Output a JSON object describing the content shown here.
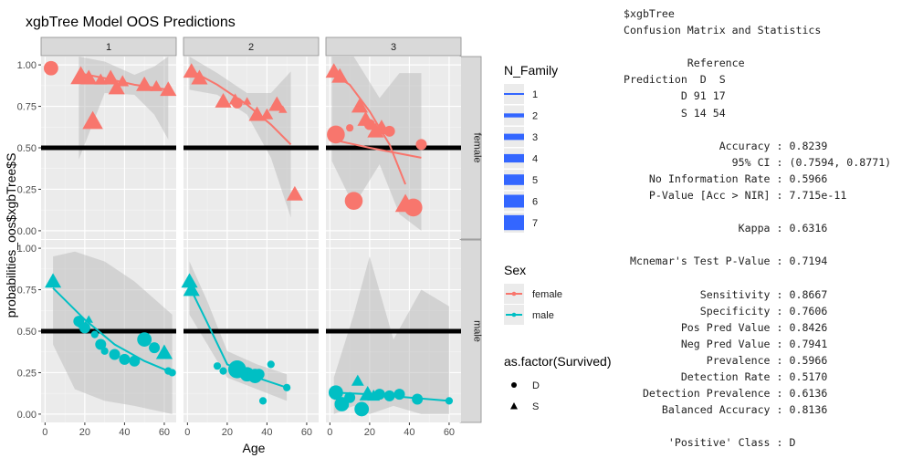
{
  "chart_data": {
    "type": "scatter",
    "title": "xgbTree Model OOS Predictions",
    "xlabel": "Age",
    "ylabel": "probabilities_oos$xgbTree$S",
    "facet_cols": [
      "1",
      "2",
      "3"
    ],
    "facet_rows": [
      "female",
      "male"
    ],
    "x_ticks": [
      "0",
      "20",
      "40",
      "60"
    ],
    "y_ticks": [
      "0.00",
      "0.25",
      "0.50",
      "0.75",
      "1.00"
    ],
    "xlim": [
      -2,
      66
    ],
    "ylim": [
      -0.05,
      1.05
    ],
    "hline": 0.5,
    "grid": true,
    "legend_position": "right",
    "colors": {
      "female": "#F8766D",
      "male": "#00BFC4",
      "panel_bg": "#EBEBEB",
      "strip_bg": "#D9D9D9",
      "band": "#CCCCCC",
      "size_key": "#3366FF"
    },
    "legends": {
      "size": {
        "title": "N_Family",
        "labels": [
          "1",
          "2",
          "3",
          "4",
          "5",
          "6",
          "7"
        ]
      },
      "color": {
        "title": "Sex",
        "labels": [
          "female",
          "male"
        ]
      },
      "shape": {
        "title": "as.factor(Survived)",
        "labels": [
          "D",
          "S"
        ]
      }
    },
    "panels": [
      {
        "col": "1",
        "row": "female",
        "sex": "female",
        "points": [
          {
            "x": 3,
            "y": 0.98,
            "s": "D",
            "n": 3
          },
          {
            "x": 18,
            "y": 0.93,
            "s": "S",
            "n": 4
          },
          {
            "x": 22,
            "y": 0.92,
            "s": "S",
            "n": 3
          },
          {
            "x": 24,
            "y": 0.66,
            "s": "S",
            "n": 4
          },
          {
            "x": 28,
            "y": 0.91,
            "s": "S",
            "n": 2
          },
          {
            "x": 33,
            "y": 0.92,
            "s": "S",
            "n": 3
          },
          {
            "x": 36,
            "y": 0.86,
            "s": "S",
            "n": 3
          },
          {
            "x": 39,
            "y": 0.9,
            "s": "S",
            "n": 2
          },
          {
            "x": 50,
            "y": 0.88,
            "s": "S",
            "n": 3
          },
          {
            "x": 56,
            "y": 0.87,
            "s": "S",
            "n": 2
          },
          {
            "x": 62,
            "y": 0.85,
            "s": "S",
            "n": 3
          }
        ],
        "fit": [
          {
            "x": 17,
            "y": 0.95
          },
          {
            "x": 30,
            "y": 0.92
          },
          {
            "x": 45,
            "y": 0.88
          },
          {
            "x": 62,
            "y": 0.85
          }
        ],
        "band": [
          {
            "x": 17,
            "lo": 0.43,
            "hi": 1.05
          },
          {
            "x": 30,
            "lo": 0.83,
            "hi": 1.02
          },
          {
            "x": 45,
            "lo": 0.82,
            "hi": 0.94
          },
          {
            "x": 55,
            "lo": 0.7,
            "hi": 0.99
          },
          {
            "x": 62,
            "lo": 0.55,
            "hi": 1.05
          }
        ]
      },
      {
        "col": "2",
        "row": "female",
        "sex": "female",
        "points": [
          {
            "x": 2,
            "y": 0.96,
            "s": "S",
            "n": 3
          },
          {
            "x": 6,
            "y": 0.92,
            "s": "S",
            "n": 3
          },
          {
            "x": 18,
            "y": 0.78,
            "s": "S",
            "n": 3
          },
          {
            "x": 24,
            "y": 0.79,
            "s": "S",
            "n": 2
          },
          {
            "x": 25,
            "y": 0.77,
            "s": "D",
            "n": 2
          },
          {
            "x": 30,
            "y": 0.78,
            "s": "S",
            "n": 1
          },
          {
            "x": 35,
            "y": 0.7,
            "s": "S",
            "n": 3
          },
          {
            "x": 40,
            "y": 0.7,
            "s": "S",
            "n": 2
          },
          {
            "x": 45,
            "y": 0.76,
            "s": "S",
            "n": 3
          },
          {
            "x": 48,
            "y": 0.73,
            "s": "S",
            "n": 1
          },
          {
            "x": 54,
            "y": 0.22,
            "s": "S",
            "n": 3
          }
        ],
        "fit": [
          {
            "x": 1,
            "y": 0.97
          },
          {
            "x": 15,
            "y": 0.88
          },
          {
            "x": 30,
            "y": 0.76
          },
          {
            "x": 42,
            "y": 0.64
          },
          {
            "x": 52,
            "y": 0.52
          }
        ],
        "band": [
          {
            "x": 1,
            "lo": 0.85,
            "hi": 1.05
          },
          {
            "x": 15,
            "lo": 0.82,
            "hi": 0.95
          },
          {
            "x": 30,
            "lo": 0.7,
            "hi": 0.83
          },
          {
            "x": 42,
            "lo": 0.44,
            "hi": 0.83
          },
          {
            "x": 52,
            "lo": 0.08,
            "hi": 0.96
          }
        ]
      },
      {
        "col": "3",
        "row": "female",
        "sex": "female",
        "points": [
          {
            "x": 2,
            "y": 0.96,
            "s": "S",
            "n": 3
          },
          {
            "x": 5,
            "y": 0.93,
            "s": "S",
            "n": 3
          },
          {
            "x": 3,
            "y": 0.58,
            "s": "D",
            "n": 4
          },
          {
            "x": 10,
            "y": 0.62,
            "s": "D",
            "n": 1
          },
          {
            "x": 12,
            "y": 0.18,
            "s": "D",
            "n": 4
          },
          {
            "x": 15,
            "y": 0.75,
            "s": "S",
            "n": 3
          },
          {
            "x": 18,
            "y": 0.67,
            "s": "S",
            "n": 3
          },
          {
            "x": 20,
            "y": 0.64,
            "s": "D",
            "n": 2
          },
          {
            "x": 23,
            "y": 0.6,
            "s": "S",
            "n": 3
          },
          {
            "x": 26,
            "y": 0.62,
            "s": "S",
            "n": 3
          },
          {
            "x": 30,
            "y": 0.6,
            "s": "D",
            "n": 2
          },
          {
            "x": 38,
            "y": 0.16,
            "s": "S",
            "n": 4
          },
          {
            "x": 42,
            "y": 0.14,
            "s": "D",
            "n": 4
          },
          {
            "x": 46,
            "y": 0.52,
            "s": "D",
            "n": 2
          }
        ],
        "fit": [
          {
            "x": 1,
            "y": 0.95
          },
          {
            "x": 10,
            "y": 0.88
          },
          {
            "x": 20,
            "y": 0.72
          },
          {
            "x": 30,
            "y": 0.52
          },
          {
            "x": 38,
            "y": 0.28
          }
        ],
        "fit2": [
          {
            "x": 1,
            "y": 0.55
          },
          {
            "x": 20,
            "y": 0.5
          },
          {
            "x": 46,
            "y": 0.44
          }
        ],
        "band": [
          {
            "x": 1,
            "lo": 0.42,
            "hi": 1.05
          },
          {
            "x": 12,
            "lo": 0.15,
            "hi": 1.05
          },
          {
            "x": 25,
            "lo": 0.4,
            "hi": 0.8
          },
          {
            "x": 35,
            "lo": 0.1,
            "hi": 0.95
          },
          {
            "x": 46,
            "lo": 0.0,
            "hi": 0.95
          }
        ]
      },
      {
        "col": "1",
        "row": "male",
        "sex": "male",
        "points": [
          {
            "x": 4,
            "y": 0.8,
            "s": "S",
            "n": 3
          },
          {
            "x": 17,
            "y": 0.56,
            "s": "D",
            "n": 2
          },
          {
            "x": 18,
            "y": 0.54,
            "s": "D",
            "n": 1
          },
          {
            "x": 20,
            "y": 0.52,
            "s": "D",
            "n": 2
          },
          {
            "x": 22,
            "y": 0.57,
            "s": "S",
            "n": 1
          },
          {
            "x": 25,
            "y": 0.48,
            "s": "D",
            "n": 1
          },
          {
            "x": 28,
            "y": 0.42,
            "s": "D",
            "n": 2
          },
          {
            "x": 30,
            "y": 0.38,
            "s": "D",
            "n": 1
          },
          {
            "x": 35,
            "y": 0.36,
            "s": "D",
            "n": 2
          },
          {
            "x": 40,
            "y": 0.33,
            "s": "D",
            "n": 2
          },
          {
            "x": 45,
            "y": 0.32,
            "s": "D",
            "n": 2
          },
          {
            "x": 50,
            "y": 0.45,
            "s": "D",
            "n": 3
          },
          {
            "x": 55,
            "y": 0.4,
            "s": "D",
            "n": 2
          },
          {
            "x": 60,
            "y": 0.37,
            "s": "S",
            "n": 3
          },
          {
            "x": 62,
            "y": 0.26,
            "s": "D",
            "n": 1
          },
          {
            "x": 64,
            "y": 0.25,
            "s": "D",
            "n": 1
          }
        ],
        "fit": [
          {
            "x": 4,
            "y": 0.76
          },
          {
            "x": 20,
            "y": 0.57
          },
          {
            "x": 35,
            "y": 0.42
          },
          {
            "x": 50,
            "y": 0.32
          },
          {
            "x": 64,
            "y": 0.25
          }
        ],
        "band": [
          {
            "x": 4,
            "lo": 0.42,
            "hi": 0.95
          },
          {
            "x": 15,
            "lo": 0.15,
            "hi": 0.98
          },
          {
            "x": 30,
            "lo": 0.08,
            "hi": 0.92
          },
          {
            "x": 45,
            "lo": 0.05,
            "hi": 0.8
          },
          {
            "x": 64,
            "lo": 0.0,
            "hi": 0.6
          }
        ]
      },
      {
        "col": "2",
        "row": "male",
        "sex": "male",
        "points": [
          {
            "x": 1,
            "y": 0.8,
            "s": "S",
            "n": 3
          },
          {
            "x": 2,
            "y": 0.75,
            "s": "S",
            "n": 3
          },
          {
            "x": 15,
            "y": 0.29,
            "s": "D",
            "n": 1
          },
          {
            "x": 18,
            "y": 0.26,
            "s": "D",
            "n": 1
          },
          {
            "x": 25,
            "y": 0.27,
            "s": "D",
            "n": 4
          },
          {
            "x": 28,
            "y": 0.25,
            "s": "D",
            "n": 2
          },
          {
            "x": 30,
            "y": 0.24,
            "s": "D",
            "n": 3
          },
          {
            "x": 34,
            "y": 0.23,
            "s": "D",
            "n": 3
          },
          {
            "x": 36,
            "y": 0.24,
            "s": "D",
            "n": 2
          },
          {
            "x": 38,
            "y": 0.08,
            "s": "D",
            "n": 1
          },
          {
            "x": 42,
            "y": 0.3,
            "s": "D",
            "n": 1
          },
          {
            "x": 50,
            "y": 0.16,
            "s": "D",
            "n": 1
          }
        ],
        "fit": [
          {
            "x": 1,
            "y": 0.77
          },
          {
            "x": 10,
            "y": 0.55
          },
          {
            "x": 20,
            "y": 0.3
          },
          {
            "x": 35,
            "y": 0.22
          },
          {
            "x": 50,
            "y": 0.16
          }
        ],
        "band": [
          {
            "x": 1,
            "lo": 0.6,
            "hi": 0.92
          },
          {
            "x": 10,
            "lo": 0.42,
            "hi": 0.68
          },
          {
            "x": 20,
            "lo": 0.22,
            "hi": 0.38
          },
          {
            "x": 35,
            "lo": 0.15,
            "hi": 0.3
          },
          {
            "x": 50,
            "lo": 0.08,
            "hi": 0.24
          }
        ]
      },
      {
        "col": "3",
        "row": "male",
        "sex": "male",
        "points": [
          {
            "x": 3,
            "y": 0.13,
            "s": "D",
            "n": 3
          },
          {
            "x": 6,
            "y": 0.06,
            "s": "D",
            "n": 3
          },
          {
            "x": 10,
            "y": 0.1,
            "s": "D",
            "n": 2
          },
          {
            "x": 14,
            "y": 0.2,
            "s": "S",
            "n": 2
          },
          {
            "x": 16,
            "y": 0.03,
            "s": "D",
            "n": 3
          },
          {
            "x": 19,
            "y": 0.12,
            "s": "S",
            "n": 3
          },
          {
            "x": 22,
            "y": 0.11,
            "s": "S",
            "n": 2
          },
          {
            "x": 25,
            "y": 0.12,
            "s": "D",
            "n": 2
          },
          {
            "x": 30,
            "y": 0.11,
            "s": "D",
            "n": 2
          },
          {
            "x": 35,
            "y": 0.12,
            "s": "D",
            "n": 2
          },
          {
            "x": 44,
            "y": 0.09,
            "s": "D",
            "n": 2
          },
          {
            "x": 60,
            "y": 0.08,
            "s": "D",
            "n": 1
          }
        ],
        "fit": [
          {
            "x": 2,
            "y": 0.13
          },
          {
            "x": 20,
            "y": 0.12
          },
          {
            "x": 40,
            "y": 0.1
          },
          {
            "x": 60,
            "y": 0.08
          }
        ],
        "band": [
          {
            "x": 2,
            "lo": 0.0,
            "hi": 0.22
          },
          {
            "x": 12,
            "lo": 0.05,
            "hi": 0.6
          },
          {
            "x": 20,
            "lo": 0.0,
            "hi": 0.95
          },
          {
            "x": 32,
            "lo": 0.05,
            "hi": 0.45
          },
          {
            "x": 46,
            "lo": 0.0,
            "hi": 0.75
          },
          {
            "x": 60,
            "lo": 0.0,
            "hi": 0.65
          }
        ]
      }
    ]
  },
  "console": {
    "lines": [
      "$xgbTree",
      "Confusion Matrix and Statistics",
      "",
      "          Reference",
      "Prediction  D  S",
      "         D 91 17",
      "         S 14 54",
      "",
      "               Accuracy : 0.8239",
      "                 95% CI : (0.7594, 0.8771)",
      "    No Information Rate : 0.5966",
      "    P-Value [Acc > NIR] : 7.715e-11",
      "",
      "                  Kappa : 0.6316",
      "",
      " Mcnemar's Test P-Value : 0.7194",
      "",
      "            Sensitivity : 0.8667",
      "            Specificity : 0.7606",
      "         Pos Pred Value : 0.8426",
      "         Neg Pred Value : 0.7941",
      "             Prevalence : 0.5966",
      "         Detection Rate : 0.5170",
      "   Detection Prevalence : 0.6136",
      "      Balanced Accuracy : 0.8136",
      "",
      "       'Positive' Class : D"
    ]
  }
}
